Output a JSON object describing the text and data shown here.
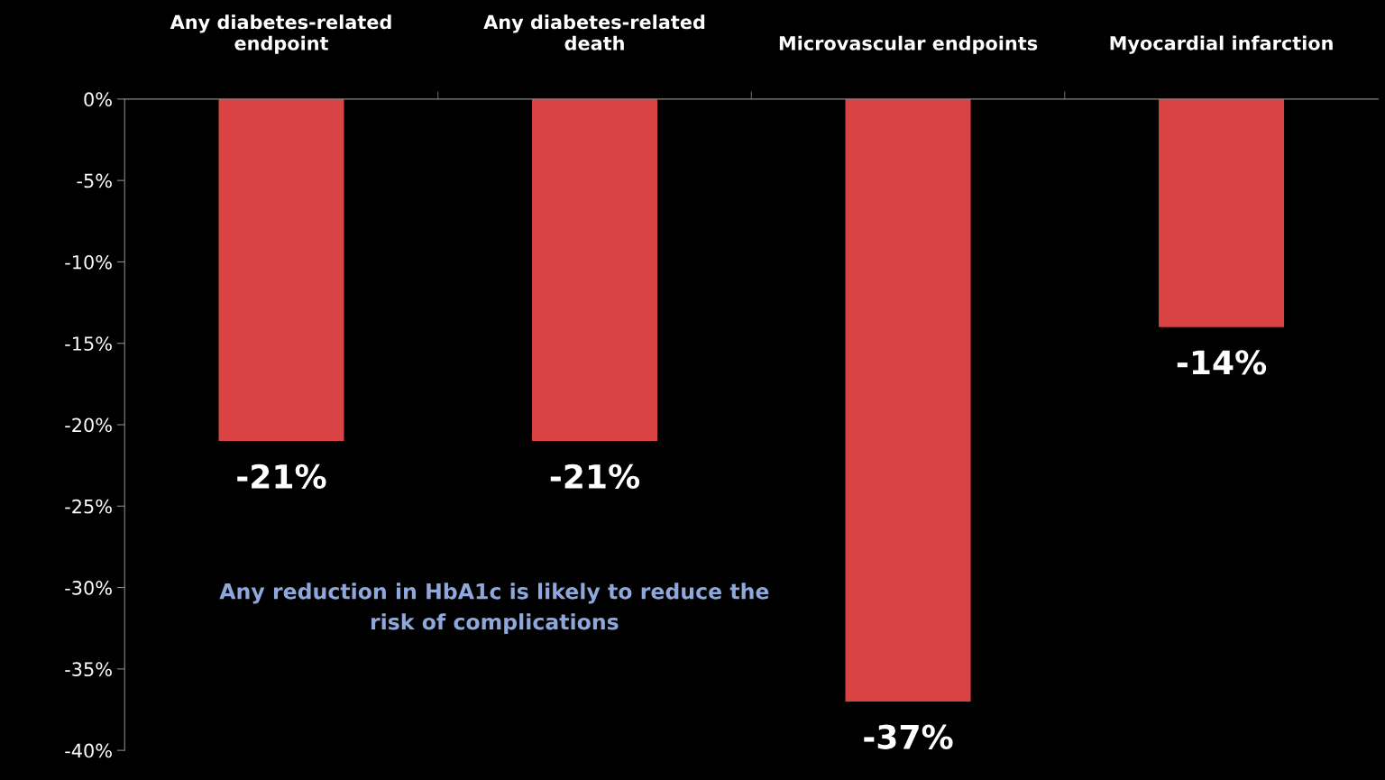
{
  "chart_data": {
    "type": "bar",
    "categories": [
      "Any diabetes-related\nendpoint",
      "Any diabetes-related\ndeath",
      "Microvascular endpoints",
      "Myocardial infarction"
    ],
    "values": [
      -21,
      -21,
      -37,
      -14
    ],
    "color": "#d94343",
    "value_labels": [
      "-21%",
      "-21%",
      "-37%",
      "-14%"
    ],
    "ylim": [
      -40,
      0
    ],
    "yticks": [
      {
        "value": 0,
        "label": "0%"
      },
      {
        "value": -5,
        "label": "-5%"
      },
      {
        "value": -10,
        "label": "-10%"
      },
      {
        "value": -15,
        "label": "-15%"
      },
      {
        "value": -20,
        "label": "-20%"
      },
      {
        "value": -25,
        "label": "-25%"
      },
      {
        "value": -30,
        "label": "-30%"
      },
      {
        "value": -35,
        "label": "-35%"
      },
      {
        "value": -40,
        "label": "-40%"
      }
    ],
    "annotations": [
      "Any reduction in HbA1c is likely to reduce the\nrisk of complications"
    ],
    "grid": false,
    "legend": false
  }
}
